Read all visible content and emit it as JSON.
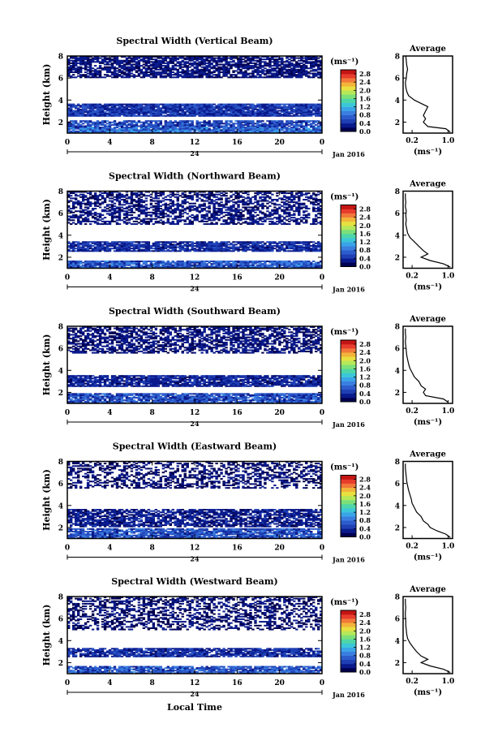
{
  "figure": {
    "xlabel_bottom": "Local Time"
  },
  "shared": {
    "ylabel": "Height (km)",
    "y_ticks": [
      "2",
      "4",
      "6",
      "8"
    ],
    "ylim": [
      1,
      8
    ],
    "x_ticks": [
      "0",
      "4",
      "8",
      "12",
      "16",
      "20",
      "0"
    ],
    "xlim_hours": [
      0,
      24
    ],
    "date_day": "24",
    "date_label": "Jan 2016",
    "colorbar_unit_label": "(ms⁻¹)",
    "colorbar_ticks": [
      "0.0",
      "0.4",
      "0.8",
      "1.2",
      "1.6",
      "2.0",
      "2.4",
      "2.8"
    ],
    "colorbar_range": [
      0.0,
      3.0
    ],
    "colorbar_colors": [
      "#000050",
      "#0a1a8c",
      "#1f3fb4",
      "#2d5ccc",
      "#3a7fe0",
      "#3aa4e8",
      "#3cc7d8",
      "#4ed6a8",
      "#7ce07a",
      "#b6e85a",
      "#e8e040",
      "#f2b43a",
      "#f2783a",
      "#e83c2c",
      "#c41414"
    ],
    "avg_title": "Average",
    "avg_x_ticks": [
      "0.2",
      "1.0"
    ],
    "avg_xlabel": "(ms⁻¹)",
    "avg_xlim": [
      0,
      1.1
    ]
  },
  "chart_data": [
    {
      "type": "heatmap",
      "title": "Spectral Width (Vertical Beam)",
      "layers": [
        {
          "y_range_km": [
            1.0,
            1.6
          ],
          "mean_ms": 0.75,
          "coverage": 0.95
        },
        {
          "y_range_km": [
            1.6,
            2.2
          ],
          "mean_ms": 0.55,
          "coverage": 0.75
        },
        {
          "y_range_km": [
            2.5,
            3.7
          ],
          "mean_ms": 0.45,
          "coverage": 0.93
        },
        {
          "y_range_km": [
            6.0,
            8.0
          ],
          "mean_ms": 0.25,
          "coverage": 0.75
        }
      ],
      "average_profile": {
        "height_km": [
          1.1,
          1.4,
          1.6,
          2.0,
          2.3,
          2.6,
          3.0,
          3.4,
          3.7,
          4.0,
          4.4,
          4.8,
          5.2,
          5.6,
          6.0,
          6.4,
          6.8,
          7.2,
          7.6,
          8.0
        ],
        "width_ms": [
          1.05,
          0.95,
          0.55,
          0.45,
          0.5,
          0.45,
          0.5,
          0.55,
          0.4,
          0.25,
          0.12,
          0.08,
          0.06,
          0.05,
          0.07,
          0.08,
          0.1,
          0.08,
          0.07,
          0.06
        ]
      }
    },
    {
      "type": "heatmap",
      "title": "Spectral Width (Northward Beam)",
      "layers": [
        {
          "y_range_km": [
            1.0,
            1.7
          ],
          "mean_ms": 0.65,
          "coverage": 0.9
        },
        {
          "y_range_km": [
            2.5,
            3.4
          ],
          "mean_ms": 0.4,
          "coverage": 0.85
        },
        {
          "y_range_km": [
            5.0,
            8.0
          ],
          "mean_ms": 0.25,
          "coverage": 0.55
        }
      ],
      "average_profile": {
        "height_km": [
          1.1,
          1.4,
          1.7,
          2.0,
          2.3,
          2.6,
          3.0,
          3.4,
          3.8,
          4.2,
          4.6,
          5.0,
          5.4,
          5.8,
          6.2,
          6.6,
          7.0,
          7.4,
          7.8
        ],
        "width_ms": [
          1.05,
          0.9,
          0.6,
          0.4,
          0.55,
          0.45,
          0.35,
          0.25,
          0.15,
          0.1,
          0.08,
          0.06,
          0.07,
          0.06,
          0.07,
          0.05,
          0.06,
          0.05,
          0.05
        ]
      }
    },
    {
      "type": "heatmap",
      "title": "Spectral Width (Southward Beam)",
      "layers": [
        {
          "y_range_km": [
            1.0,
            1.9
          ],
          "mean_ms": 0.6,
          "coverage": 0.9
        },
        {
          "y_range_km": [
            2.5,
            3.6
          ],
          "mean_ms": 0.35,
          "coverage": 0.85
        },
        {
          "y_range_km": [
            5.5,
            8.0
          ],
          "mean_ms": 0.25,
          "coverage": 0.6
        }
      ],
      "average_profile": {
        "height_km": [
          1.1,
          1.4,
          1.7,
          2.0,
          2.3,
          2.6,
          3.0,
          3.4,
          3.8,
          4.2,
          4.6,
          5.0,
          5.4,
          5.8,
          6.2,
          6.6,
          7.0,
          7.4,
          7.8
        ],
        "width_ms": [
          1.0,
          0.9,
          0.5,
          0.45,
          0.5,
          0.4,
          0.35,
          0.25,
          0.2,
          0.15,
          0.12,
          0.1,
          0.08,
          0.07,
          0.06,
          0.05,
          0.06,
          0.05,
          0.05
        ]
      }
    },
    {
      "type": "heatmap",
      "title": "Spectral Width (Eastward Beam)",
      "layers": [
        {
          "y_range_km": [
            1.0,
            1.9
          ],
          "mean_ms": 0.6,
          "coverage": 0.85
        },
        {
          "y_range_km": [
            2.1,
            3.7
          ],
          "mean_ms": 0.3,
          "coverage": 0.75
        },
        {
          "y_range_km": [
            5.5,
            8.0
          ],
          "mean_ms": 0.2,
          "coverage": 0.45
        }
      ],
      "average_profile": {
        "height_km": [
          1.1,
          1.4,
          1.7,
          2.0,
          2.3,
          2.6,
          3.0,
          3.4,
          3.8,
          4.2,
          4.6,
          5.0,
          5.4,
          5.8,
          6.2,
          6.6,
          7.0,
          7.4,
          7.8
        ],
        "width_ms": [
          1.05,
          0.95,
          0.75,
          0.6,
          0.55,
          0.45,
          0.4,
          0.3,
          0.25,
          0.2,
          0.18,
          0.15,
          0.12,
          0.1,
          0.08,
          0.07,
          0.06,
          0.05,
          0.05
        ]
      }
    },
    {
      "type": "heatmap",
      "title": "Spectral Width (Westward Beam)",
      "layers": [
        {
          "y_range_km": [
            1.0,
            1.7
          ],
          "mean_ms": 0.65,
          "coverage": 0.85
        },
        {
          "y_range_km": [
            2.5,
            3.3
          ],
          "mean_ms": 0.4,
          "coverage": 0.85
        },
        {
          "y_range_km": [
            5.0,
            8.0
          ],
          "mean_ms": 0.2,
          "coverage": 0.45
        }
      ],
      "average_profile": {
        "height_km": [
          1.1,
          1.4,
          1.7,
          2.0,
          2.3,
          2.6,
          3.0,
          3.4,
          3.8,
          4.2,
          4.6,
          5.0,
          5.4,
          5.8,
          6.2,
          6.6,
          7.0,
          7.4,
          7.8
        ],
        "width_ms": [
          1.05,
          0.9,
          0.6,
          0.4,
          0.55,
          0.4,
          0.3,
          0.22,
          0.15,
          0.1,
          0.08,
          0.07,
          0.06,
          0.06,
          0.05,
          0.05,
          0.06,
          0.05,
          0.05
        ]
      }
    }
  ]
}
